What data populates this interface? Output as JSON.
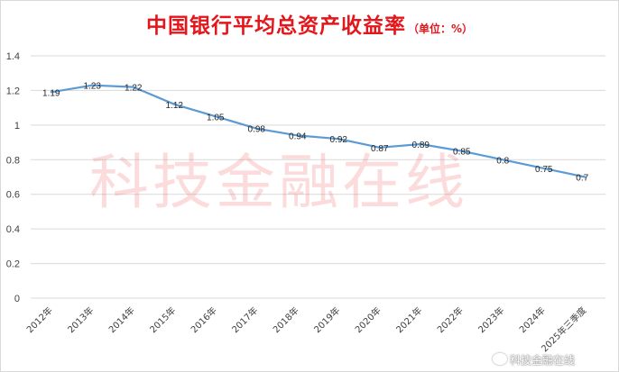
{
  "chart_data": {
    "type": "line",
    "title": "中国银行平均总资产收益率",
    "unit_note": "（单位：%）",
    "categories": [
      "2012年",
      "2013年",
      "2014年",
      "2015年",
      "2016年",
      "2017年",
      "2018年",
      "2019年",
      "2020年",
      "2021年",
      "2022年",
      "2023年",
      "2024年",
      "2025年三季度"
    ],
    "values": [
      1.19,
      1.23,
      1.22,
      1.12,
      1.05,
      0.98,
      0.94,
      0.92,
      0.87,
      0.89,
      0.85,
      0.8,
      0.75,
      0.7
    ],
    "data_labels": [
      "1.19",
      "1.23",
      "1.22",
      "1.12",
      "1.05",
      "0.98",
      "0.94",
      "0.92",
      "0.87",
      "0.89",
      "0.85",
      "0.8",
      "0.75",
      "0.7"
    ],
    "ylim": [
      0,
      1.4
    ],
    "yticks": [
      "0",
      "0.2",
      "0.4",
      "0.6",
      "0.8",
      "1",
      "1.2",
      "1.4"
    ],
    "grid": true,
    "line_color": "#5b9bd5"
  },
  "watermark": "科技金融在线",
  "weibo_mark": "科技金融在线"
}
